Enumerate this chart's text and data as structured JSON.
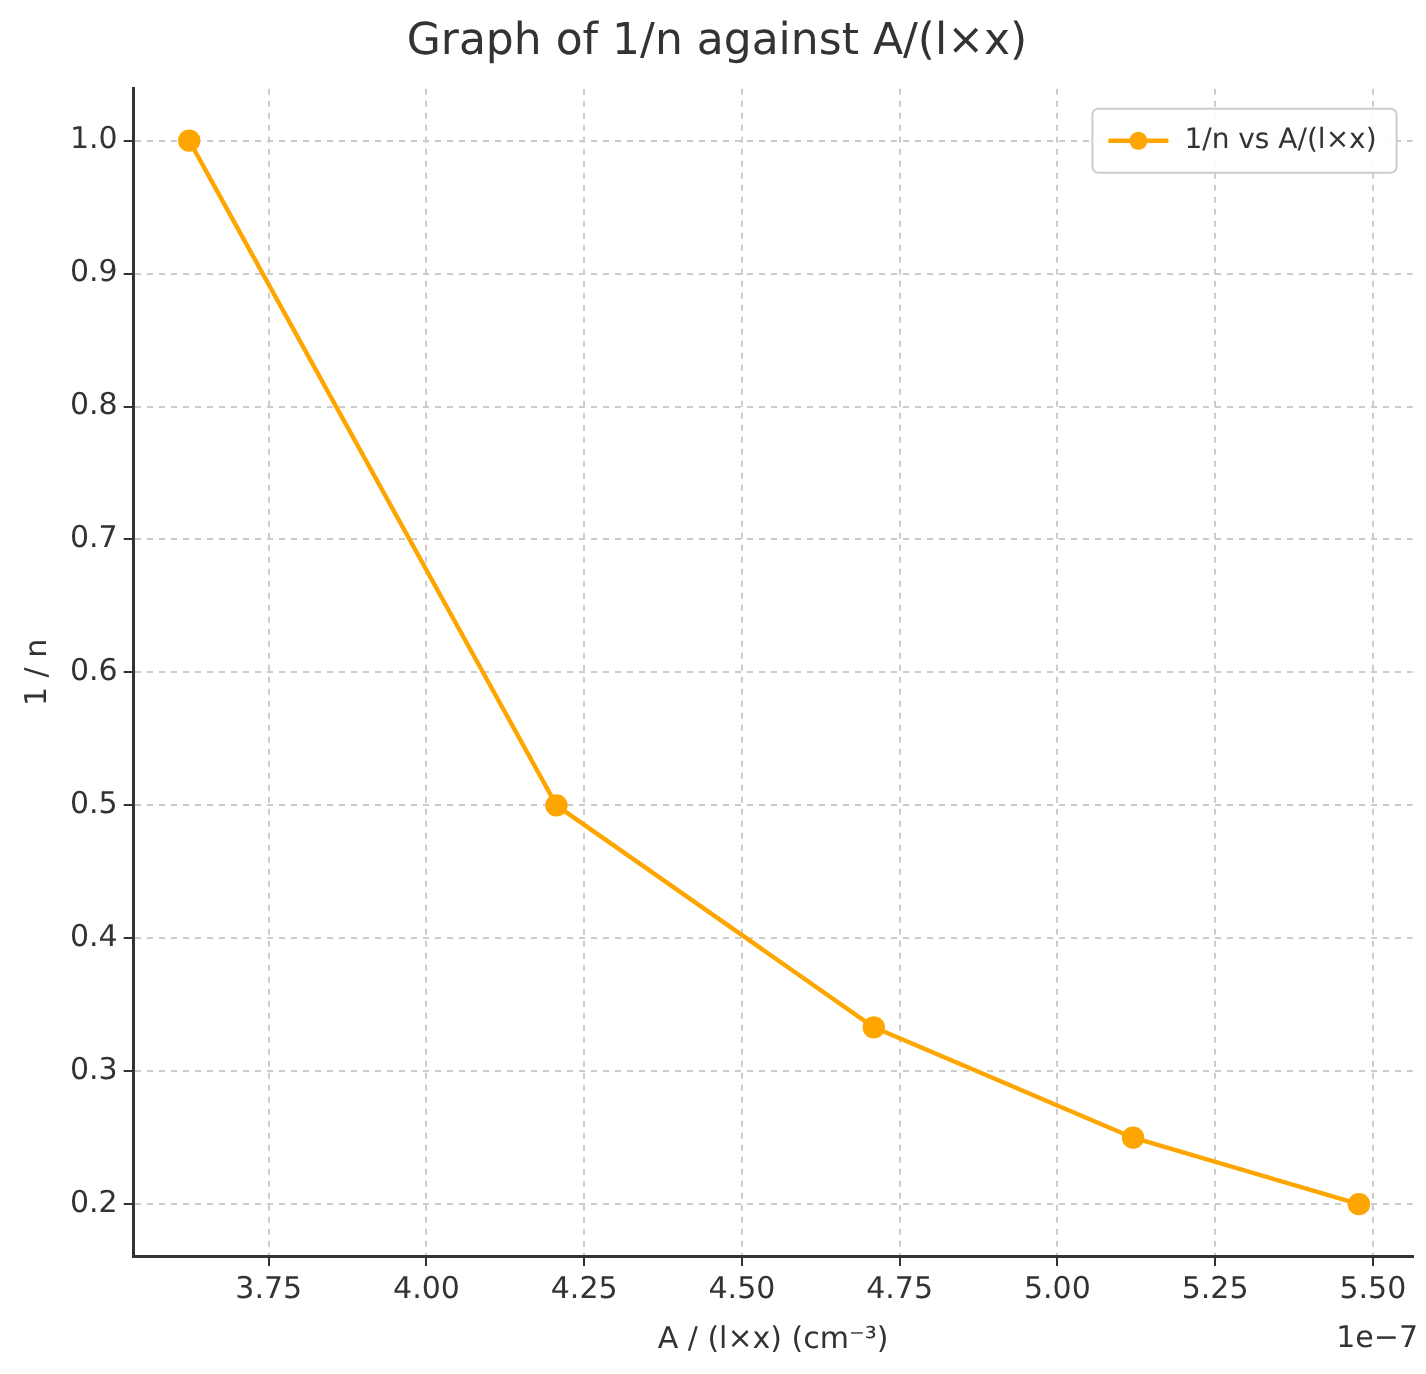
{
  "chart_data": {
    "type": "line",
    "title": "Graph of 1/n against A/(l×x)",
    "xlabel": "A / (l×x) (cm⁻³)",
    "ylabel": "1 / n",
    "x": [
      3.624,
      4.206,
      4.709,
      5.12,
      5.478
    ],
    "series": [
      {
        "name": "1/n vs A/(l×x)",
        "color": "#ffa500",
        "values": [
          1.0,
          0.5,
          0.333,
          0.25,
          0.2
        ]
      }
    ],
    "xlim": [
      3.536,
      5.563
    ],
    "xticks": [
      3.75,
      {
        "value": 4.0,
        "label": "4.00"
      },
      4.25,
      {
        "value": 4.5,
        "label": "4.50"
      },
      4.75,
      {
        "value": 5.0,
        "label": "5.00"
      },
      5.25,
      {
        "value": 5.5,
        "label": "5.50"
      }
    ],
    "ylim": [
      0.161,
      1.039
    ],
    "yticks": [
      {
        "value": 0.2,
        "label": "0.2"
      },
      {
        "value": 0.3,
        "label": "0.3"
      },
      {
        "value": 0.4,
        "label": "0.4"
      },
      {
        "value": 0.5,
        "label": "0.5"
      },
      {
        "value": 0.6,
        "label": "0.6"
      },
      {
        "value": 0.7,
        "label": "0.7"
      },
      {
        "value": 0.8,
        "label": "0.8"
      },
      {
        "value": 0.9,
        "label": "0.9"
      },
      {
        "value": 1.0,
        "label": "1.0"
      }
    ],
    "annotations": [
      "1e−7"
    ],
    "grid": true,
    "legend": "top right",
    "marker": "circle",
    "line_style": "solid"
  }
}
